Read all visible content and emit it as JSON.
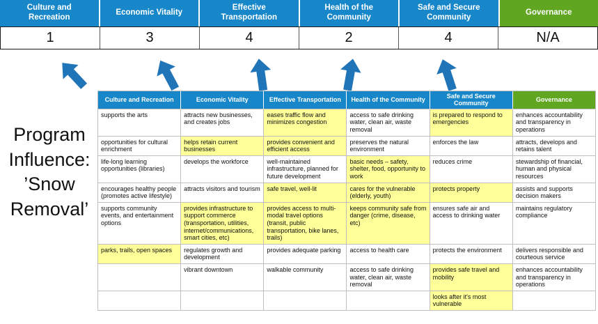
{
  "colors": {
    "pillar-blue": "#1787C9",
    "governance-green": "#60A621",
    "highlight-yellow": "#FFFF99",
    "arrow-blue": "#2074B8",
    "grid-border": "#BFBFBF"
  },
  "scoreboard": {
    "pillars": [
      {
        "label": "Culture and Recreation",
        "score": "1"
      },
      {
        "label": "Economic Vitality",
        "score": "3"
      },
      {
        "label": "Effective Transportation",
        "score": "4"
      },
      {
        "label": "Health of the Community",
        "score": "2"
      },
      {
        "label": "Safe and Secure Community",
        "score": "4"
      },
      {
        "label": "Governance",
        "score": "N/A"
      }
    ]
  },
  "program_label": "Program Influence: ’Snow Removal’",
  "matrix": {
    "headers": [
      "Culture and Recreation",
      "Economic Vitality",
      "Effective Transportation",
      "Health of the Community",
      "Safe and Secure Community",
      "Governance"
    ],
    "rows": [
      [
        {
          "t": "supports the arts",
          "h": false
        },
        {
          "t": "attracts new businesses, and creates jobs",
          "h": false
        },
        {
          "t": "eases traffic flow and minimizes congestion",
          "h": true
        },
        {
          "t": "access to safe drinking water, clean air, waste removal",
          "h": false
        },
        {
          "t": "is prepared to respond to emergencies",
          "h": true
        },
        {
          "t": "enhances accountability and transparency in operations",
          "h": false
        }
      ],
      [
        {
          "t": "opportunities for cultural enrichment",
          "h": false
        },
        {
          "t": "helps retain current businesses",
          "h": true
        },
        {
          "t": "provides convenient and efficient access",
          "h": true
        },
        {
          "t": "preserves the natural environment",
          "h": false
        },
        {
          "t": "enforces the law",
          "h": false
        },
        {
          "t": "attracts, develops and retains talent",
          "h": false
        }
      ],
      [
        {
          "t": "life-long learning opportunities (libraries)",
          "h": false
        },
        {
          "t": "develops the workforce",
          "h": false
        },
        {
          "t": "well-maintained infrastructure, planned for future development",
          "h": false
        },
        {
          "t": "basic needs – safety, shelter, food, opportunity to work",
          "h": true
        },
        {
          "t": "reduces crime",
          "h": false
        },
        {
          "t": "stewardship of financial, human and physical resources",
          "h": false
        }
      ],
      [
        {
          "t": "encourages healthy people (promotes active lifestyle)",
          "h": false
        },
        {
          "t": "attracts visitors and tourism",
          "h": false
        },
        {
          "t": "safe travel, well-lit",
          "h": true
        },
        {
          "t": "cares for the vulnerable (elderly, youth)",
          "h": true
        },
        {
          "t": "protects property",
          "h": true
        },
        {
          "t": "assists and supports decision makers",
          "h": false
        }
      ],
      [
        {
          "t": "supports community events, and entertainment options",
          "h": false
        },
        {
          "t": "provides infrastructure to support commerce (transportation, utilities, internet/communications, smart cities, etc)",
          "h": true
        },
        {
          "t": "provides access to multi-modal travel options (transit, public transportation, bike lanes, trails)",
          "h": true
        },
        {
          "t": "keeps community safe from danger (crime, disease, etc)",
          "h": true
        },
        {
          "t": "ensures safe air and access to drinking water",
          "h": false
        },
        {
          "t": "maintains regulatory compliance",
          "h": false
        }
      ],
      [
        {
          "t": "parks, trails, open spaces",
          "h": true
        },
        {
          "t": "regulates growth and development",
          "h": false
        },
        {
          "t": "provides adequate parking",
          "h": false
        },
        {
          "t": "access to health care",
          "h": false
        },
        {
          "t": "protects the environment",
          "h": false
        },
        {
          "t": "delivers responsible and courteous service",
          "h": false
        }
      ],
      [
        {
          "t": "",
          "h": false
        },
        {
          "t": "vibrant downtown",
          "h": false
        },
        {
          "t": "walkable community",
          "h": false
        },
        {
          "t": "access to safe drinking water, clean air, waste removal",
          "h": false
        },
        {
          "t": "provides safe travel and mobility",
          "h": true
        },
        {
          "t": "enhances accountability and transparency in operations",
          "h": false
        }
      ],
      [
        {
          "t": "",
          "h": false
        },
        {
          "t": "",
          "h": false
        },
        {
          "t": "",
          "h": false
        },
        {
          "t": "",
          "h": false
        },
        {
          "t": "looks after it's most vulnerable",
          "h": true
        },
        {
          "t": "",
          "h": false
        }
      ]
    ]
  }
}
